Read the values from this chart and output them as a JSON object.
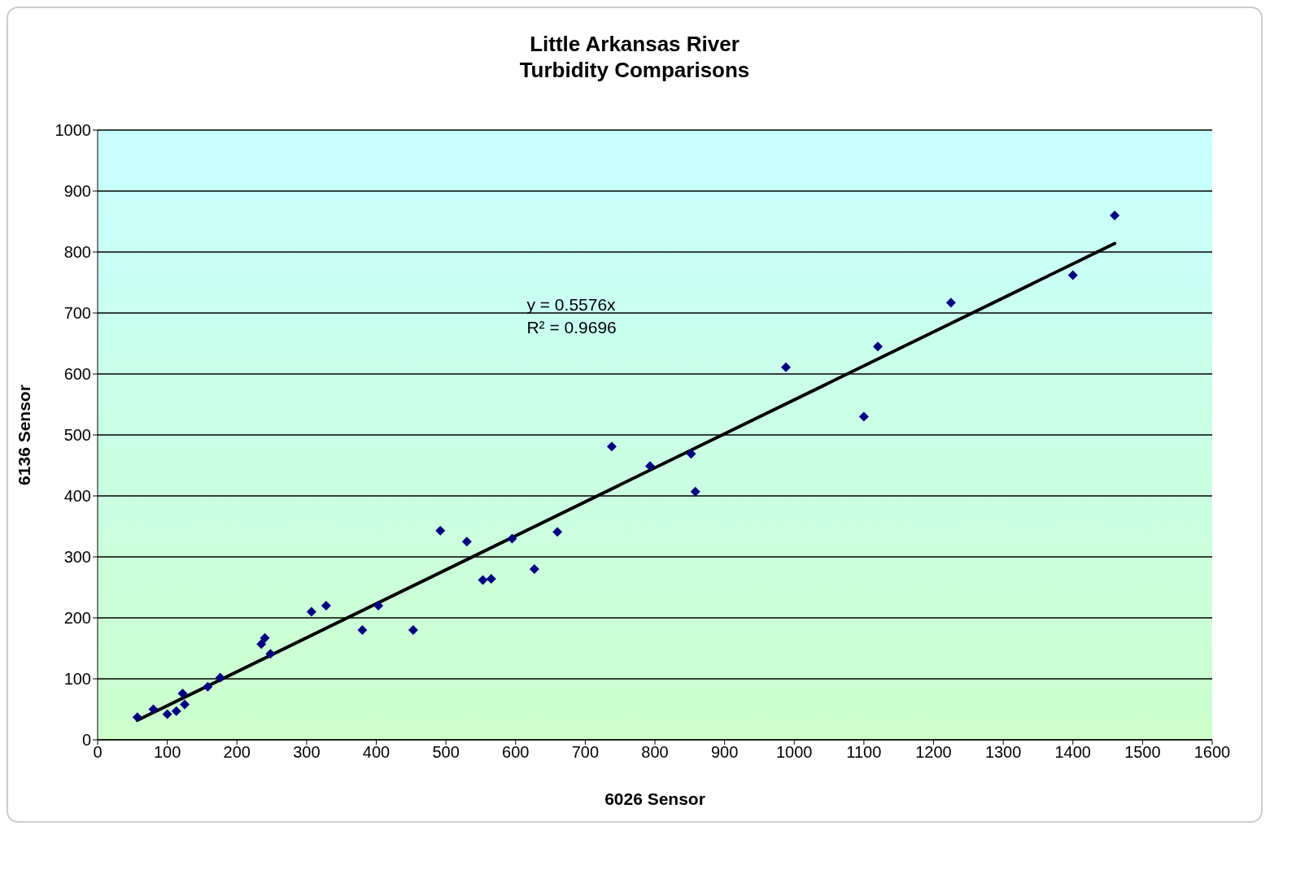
{
  "chart_data": {
    "type": "scatter",
    "title": "Little Arkansas River",
    "subtitle": "Turbidity Comparisons",
    "xlabel": "6026 Sensor",
    "ylabel": "6136 Sensor",
    "annotations": [
      "y = 0.5576x",
      "R² = 0.9696"
    ],
    "xlim": [
      0,
      1600
    ],
    "xticks": [
      0,
      100,
      200,
      300,
      400,
      500,
      600,
      700,
      800,
      900,
      1000,
      1100,
      1200,
      1300,
      1400,
      1500,
      1600
    ],
    "ylim": [
      0,
      1000
    ],
    "yticks": [
      0,
      100,
      200,
      300,
      400,
      500,
      600,
      700,
      800,
      900,
      1000
    ],
    "grid": "y",
    "legend": false,
    "marker": "diamond",
    "series": [
      {
        "color": "#000080",
        "x": [
          57,
          80,
          100,
          113,
          122,
          125,
          158,
          176,
          235,
          240,
          248,
          307,
          328,
          380,
          403,
          453,
          492,
          530,
          553,
          565,
          595,
          627,
          660,
          738,
          793,
          852,
          858,
          988,
          1100,
          1120,
          1225,
          1400,
          1460
        ],
        "values": [
          37,
          50,
          42,
          47,
          76,
          58,
          87,
          102,
          157,
          167,
          141,
          210,
          220,
          180,
          220,
          180,
          343,
          325,
          262,
          264,
          330,
          280,
          341,
          481,
          449,
          469,
          407,
          611,
          530,
          645,
          717,
          762,
          860
        ]
      },
      {
        "type": "line",
        "color": "#000000",
        "marker": "none",
        "line_style": "solid",
        "x": [
          57,
          1460
        ],
        "values": [
          32,
          814
        ]
      }
    ]
  }
}
